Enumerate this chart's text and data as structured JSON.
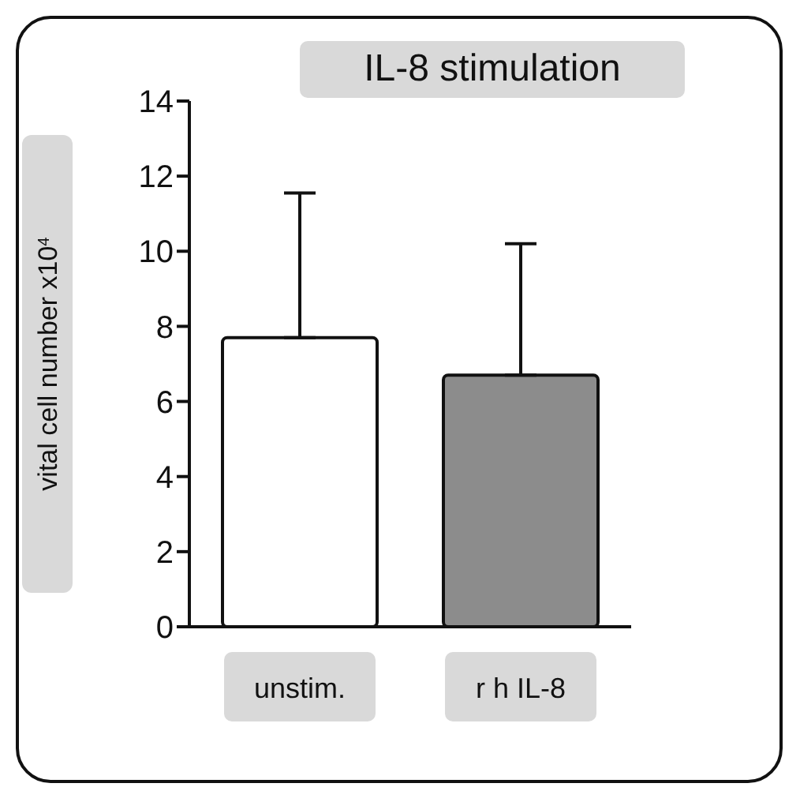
{
  "chart_data": {
    "type": "bar",
    "title": "IL-8 stimulation",
    "ylabel": "vital cell number x10$^{4}$",
    "categories": [
      "unstim.",
      "r h IL-8"
    ],
    "values": [
      7.7,
      6.7
    ],
    "colors": [
      "#ffffff",
      "#8c8c8c"
    ],
    "errors": [
      [
        7.7,
        11.55
      ],
      [
        6.7,
        10.2
      ]
    ],
    "ylim": [
      0,
      14
    ],
    "yticks": [
      0,
      2,
      4,
      6,
      8,
      10,
      12,
      14
    ],
    "grid": false
  }
}
